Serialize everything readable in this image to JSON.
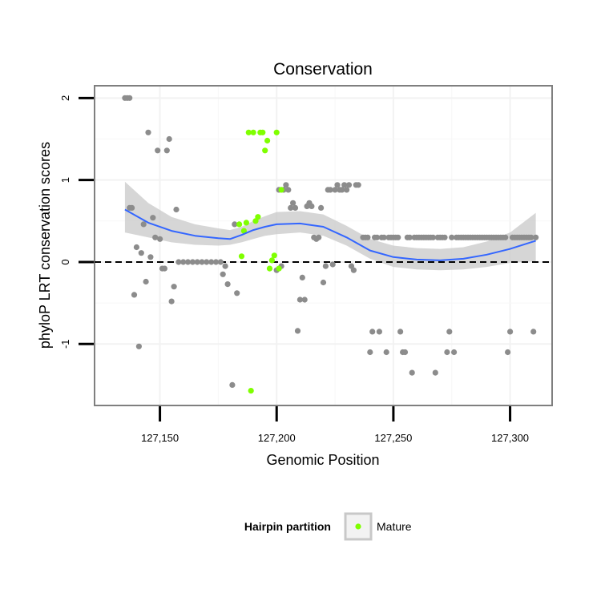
{
  "chart_data": {
    "type": "scatter",
    "title": "Conservation",
    "xlabel": "Genomic Position",
    "ylabel": "phyloP LRT conservation scores",
    "xlim": [
      127122,
      127318
    ],
    "ylim": [
      -1.75,
      2.15
    ],
    "x_ticks": [
      127150,
      127200,
      127250,
      127300
    ],
    "x_tick_labels": [
      "127,150",
      "127,200",
      "127,250",
      "127,300"
    ],
    "y_ticks": [
      -1,
      0,
      1,
      2
    ],
    "y_tick_labels": [
      "-1",
      "0",
      "1",
      "2"
    ],
    "grid": true,
    "reference_line": {
      "y": 0,
      "style": "dashed"
    },
    "legend": {
      "title": "Hairpin partition",
      "position": "bottom",
      "entries": [
        {
          "label": "Mature",
          "color": "#7fff00"
        }
      ]
    },
    "colors": {
      "other": "#8c8c8c",
      "mature": "#7fff00",
      "smooth": "#3366ff",
      "ribbon": "#c8c8c8"
    },
    "series": [
      {
        "name": "Other",
        "points": [
          [
            127135,
            2.0
          ],
          [
            127136,
            2.0
          ],
          [
            127137,
            2.0
          ],
          [
            127137,
            0.66
          ],
          [
            127138,
            0.66
          ],
          [
            127139,
            -0.4
          ],
          [
            127140,
            0.18
          ],
          [
            127141,
            -1.03
          ],
          [
            127142,
            0.11
          ],
          [
            127143,
            0.46
          ],
          [
            127144,
            -0.24
          ],
          [
            127145,
            1.58
          ],
          [
            127146,
            0.06
          ],
          [
            127147,
            0.54
          ],
          [
            127148,
            0.3
          ],
          [
            127149,
            1.36
          ],
          [
            127150,
            0.28
          ],
          [
            127151,
            -0.08
          ],
          [
            127152,
            -0.08
          ],
          [
            127153,
            1.36
          ],
          [
            127154,
            1.5
          ],
          [
            127155,
            -0.48
          ],
          [
            127156,
            -0.3
          ],
          [
            127157,
            0.64
          ],
          [
            127158,
            0.0
          ],
          [
            127160,
            0.0
          ],
          [
            127162,
            0.0
          ],
          [
            127164,
            0.0
          ],
          [
            127166,
            0.0
          ],
          [
            127168,
            0.0
          ],
          [
            127170,
            0.0
          ],
          [
            127172,
            0.0
          ],
          [
            127174,
            0.0
          ],
          [
            127176,
            0.0
          ],
          [
            127177,
            -0.15
          ],
          [
            127178,
            -0.05
          ],
          [
            127179,
            -0.27
          ],
          [
            127181,
            -1.5
          ],
          [
            127182,
            0.46
          ],
          [
            127183,
            -0.38
          ],
          [
            127200,
            -0.1
          ],
          [
            127201,
            0.88
          ],
          [
            127202,
            -0.05
          ],
          [
            127203,
            0.88
          ],
          [
            127204,
            0.94
          ],
          [
            127205,
            0.88
          ],
          [
            127206,
            0.66
          ],
          [
            127207,
            0.72
          ],
          [
            127208,
            0.66
          ],
          [
            127209,
            -0.84
          ],
          [
            127210,
            -0.46
          ],
          [
            127211,
            -0.19
          ],
          [
            127212,
            -0.46
          ],
          [
            127213,
            0.68
          ],
          [
            127214,
            0.72
          ],
          [
            127215,
            0.68
          ],
          [
            127216,
            0.3
          ],
          [
            127217,
            0.28
          ],
          [
            127218,
            0.3
          ],
          [
            127219,
            0.66
          ],
          [
            127220,
            -0.25
          ],
          [
            127221,
            -0.05
          ],
          [
            127222,
            0.88
          ],
          [
            127223,
            0.88
          ],
          [
            127224,
            -0.03
          ],
          [
            127225,
            0.88
          ],
          [
            127226,
            0.94
          ],
          [
            127227,
            0.88
          ],
          [
            127228,
            0.88
          ],
          [
            127229,
            0.94
          ],
          [
            127230,
            0.88
          ],
          [
            127231,
            0.94
          ],
          [
            127232,
            -0.05
          ],
          [
            127233,
            -0.1
          ],
          [
            127234,
            0.94
          ],
          [
            127235,
            0.94
          ],
          [
            127237,
            0.3
          ],
          [
            127238,
            0.3
          ],
          [
            127239,
            0.3
          ],
          [
            127240,
            -1.1
          ],
          [
            127241,
            -0.85
          ],
          [
            127242,
            0.3
          ],
          [
            127243,
            0.3
          ],
          [
            127244,
            -0.85
          ],
          [
            127245,
            0.3
          ],
          [
            127246,
            0.3
          ],
          [
            127247,
            -1.1
          ],
          [
            127248,
            0.3
          ],
          [
            127249,
            0.3
          ],
          [
            127250,
            0.3
          ],
          [
            127251,
            0.3
          ],
          [
            127252,
            0.3
          ],
          [
            127253,
            -0.85
          ],
          [
            127254,
            -1.1
          ],
          [
            127255,
            -1.1
          ],
          [
            127256,
            0.3
          ],
          [
            127257,
            0.3
          ],
          [
            127258,
            -1.35
          ],
          [
            127259,
            0.3
          ],
          [
            127260,
            0.3
          ],
          [
            127261,
            0.3
          ],
          [
            127262,
            0.3
          ],
          [
            127263,
            0.3
          ],
          [
            127264,
            0.3
          ],
          [
            127265,
            0.3
          ],
          [
            127266,
            0.3
          ],
          [
            127267,
            0.3
          ],
          [
            127268,
            -1.35
          ],
          [
            127269,
            0.3
          ],
          [
            127270,
            0.3
          ],
          [
            127271,
            0.3
          ],
          [
            127272,
            0.3
          ],
          [
            127273,
            -1.1
          ],
          [
            127274,
            -0.85
          ],
          [
            127275,
            0.3
          ],
          [
            127276,
            -1.1
          ],
          [
            127277,
            0.3
          ],
          [
            127278,
            0.3
          ],
          [
            127279,
            0.3
          ],
          [
            127280,
            0.3
          ],
          [
            127281,
            0.3
          ],
          [
            127282,
            0.3
          ],
          [
            127283,
            0.3
          ],
          [
            127284,
            0.3
          ],
          [
            127285,
            0.3
          ],
          [
            127286,
            0.3
          ],
          [
            127287,
            0.3
          ],
          [
            127288,
            0.3
          ],
          [
            127289,
            0.3
          ],
          [
            127290,
            0.3
          ],
          [
            127291,
            0.3
          ],
          [
            127292,
            0.3
          ],
          [
            127293,
            0.3
          ],
          [
            127294,
            0.3
          ],
          [
            127295,
            0.3
          ],
          [
            127296,
            0.3
          ],
          [
            127297,
            0.3
          ],
          [
            127298,
            0.3
          ],
          [
            127299,
            -1.1
          ],
          [
            127300,
            -0.85
          ],
          [
            127301,
            0.3
          ],
          [
            127302,
            0.3
          ],
          [
            127303,
            0.3
          ],
          [
            127304,
            0.3
          ],
          [
            127305,
            0.3
          ],
          [
            127306,
            0.3
          ],
          [
            127307,
            0.3
          ],
          [
            127308,
            0.3
          ],
          [
            127309,
            0.3
          ],
          [
            127310,
            -0.85
          ],
          [
            127311,
            0.3
          ]
        ]
      },
      {
        "name": "Mature",
        "points": [
          [
            127184,
            0.46
          ],
          [
            127185,
            0.07
          ],
          [
            127186,
            0.38
          ],
          [
            127187,
            0.48
          ],
          [
            127188,
            1.58
          ],
          [
            127189,
            -1.57
          ],
          [
            127190,
            1.58
          ],
          [
            127191,
            0.5
          ],
          [
            127192,
            0.55
          ],
          [
            127193,
            1.58
          ],
          [
            127194,
            1.58
          ],
          [
            127195,
            1.36
          ],
          [
            127196,
            1.48
          ],
          [
            127197,
            -0.08
          ],
          [
            127198,
            0.02
          ],
          [
            127199,
            0.08
          ],
          [
            127200,
            1.58
          ],
          [
            127201,
            -0.08
          ],
          [
            127202,
            0.88
          ]
        ]
      }
    ],
    "smooth": {
      "x": [
        127135,
        127145,
        127155,
        127165,
        127175,
        127180,
        127185,
        127190,
        127195,
        127200,
        127210,
        127220,
        127230,
        127240,
        127250,
        127260,
        127270,
        127280,
        127290,
        127300,
        127311
      ],
      "y": [
        0.64,
        0.48,
        0.38,
        0.32,
        0.29,
        0.28,
        0.33,
        0.39,
        0.43,
        0.46,
        0.47,
        0.43,
        0.3,
        0.14,
        0.06,
        0.03,
        0.02,
        0.04,
        0.09,
        0.16,
        0.26
      ],
      "lower": [
        0.36,
        0.3,
        0.24,
        0.21,
        0.2,
        0.21,
        0.24,
        0.28,
        0.32,
        0.34,
        0.36,
        0.32,
        0.2,
        0.04,
        -0.06,
        -0.09,
        -0.1,
        -0.09,
        -0.06,
        -0.01,
        0.01
      ],
      "upper": [
        0.98,
        0.72,
        0.55,
        0.46,
        0.41,
        0.39,
        0.43,
        0.5,
        0.56,
        0.61,
        0.62,
        0.58,
        0.44,
        0.28,
        0.2,
        0.17,
        0.16,
        0.18,
        0.25,
        0.36,
        0.6
      ]
    }
  }
}
